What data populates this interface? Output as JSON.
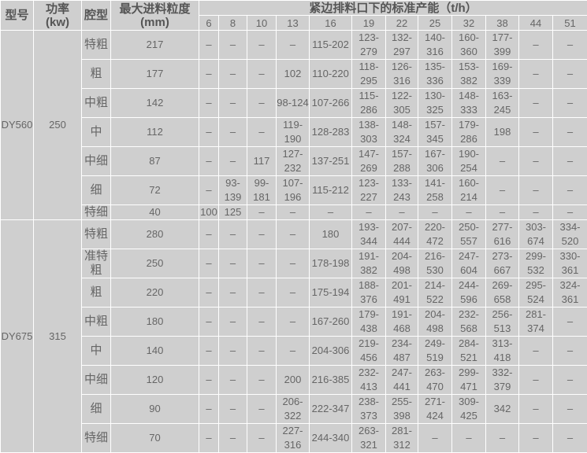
{
  "header": {
    "model": "型号",
    "power": "功率",
    "power_unit": "(kw)",
    "cavity": "腔型",
    "max_feed": "最大进料粒度",
    "max_feed_unit": "(mm)",
    "capacity_title": "紧边排料口下的标准产能（t/h）",
    "css_columns": [
      "6",
      "8",
      "10",
      "13",
      "16",
      "19",
      "22",
      "25",
      "32",
      "38",
      "44",
      "51"
    ]
  },
  "groups": [
    {
      "model": "DY560",
      "power": "250",
      "rows": [
        {
          "cavity": "特粗",
          "max_feed": "217",
          "values": [
            "–",
            "–",
            "–",
            "–",
            "115-202",
            "123-279",
            "132-297",
            "140-316",
            "160-360",
            "177-399",
            "–",
            "–"
          ]
        },
        {
          "cavity": "粗",
          "max_feed": "177",
          "values": [
            "–",
            "–",
            "–",
            "102",
            "110-220",
            "118-295",
            "126-316",
            "135-336",
            "153-382",
            "169-339",
            "–",
            "–"
          ]
        },
        {
          "cavity": "中粗",
          "max_feed": "142",
          "values": [
            "–",
            "–",
            "–",
            "98-124",
            "107-266",
            "115-286",
            "122-305",
            "130-325",
            "148-333",
            "163-245",
            "–",
            "–"
          ]
        },
        {
          "cavity": "中",
          "max_feed": "112",
          "values": [
            "–",
            "–",
            "–",
            "119-190",
            "128-283",
            "138-303",
            "148-324",
            "157-345",
            "179-286",
            "198",
            "–",
            "–"
          ]
        },
        {
          "cavity": "中细",
          "max_feed": "87",
          "values": [
            "–",
            "–",
            "117",
            "127-232",
            "137-251",
            "147-269",
            "157-288",
            "167-306",
            "190-254",
            "–",
            "–",
            "–"
          ]
        },
        {
          "cavity": "细",
          "max_feed": "72",
          "values": [
            "–",
            "93-139",
            "99-181",
            "107-196",
            "115-212",
            "123-227",
            "133-243",
            "141-258",
            "160-214",
            "–",
            "–",
            "–"
          ]
        },
        {
          "cavity": "特细",
          "max_feed": "40",
          "short": true,
          "values": [
            "100",
            "125",
            "–",
            "–",
            "–",
            "–",
            "–",
            "–",
            "–",
            "–",
            "–",
            "–"
          ]
        }
      ]
    },
    {
      "model": "DY675",
      "power": "315",
      "rows": [
        {
          "cavity": "特粗",
          "max_feed": "280",
          "values": [
            "–",
            "–",
            "–",
            "–",
            "180",
            "193-344",
            "207-444",
            "220-472",
            "250-557",
            "277-616",
            "303-674",
            "334-520"
          ]
        },
        {
          "cavity": "准特粗",
          "max_feed": "250",
          "values": [
            "–",
            "–",
            "–",
            "–",
            "178-198",
            "191-382",
            "204-498",
            "216-530",
            "247-604",
            "273-667",
            "299-532",
            "330-361"
          ]
        },
        {
          "cavity": "粗",
          "max_feed": "220",
          "values": [
            "–",
            "–",
            "–",
            "–",
            "175-194",
            "188-376",
            "201-491",
            "214-522",
            "244-596",
            "269-658",
            "295-524",
            "324-361"
          ]
        },
        {
          "cavity": "中粗",
          "max_feed": "180",
          "values": [
            "–",
            "–",
            "–",
            "–",
            "167-260",
            "179-438",
            "191-468",
            "204-498",
            "232-568",
            "256-513",
            "281-374",
            "–"
          ]
        },
        {
          "cavity": "中",
          "max_feed": "140",
          "values": [
            "–",
            "–",
            "–",
            "–",
            "204-306",
            "219-456",
            "234-487",
            "249-519",
            "284-521",
            "313-418",
            "–",
            "–"
          ]
        },
        {
          "cavity": "中细",
          "max_feed": "120",
          "values": [
            "–",
            "–",
            "–",
            "200",
            "216-385",
            "232-413",
            "247-441",
            "263-470",
            "299-471",
            "332-379",
            "–",
            "–"
          ]
        },
        {
          "cavity": "细",
          "max_feed": "90",
          "values": [
            "–",
            "–",
            "–",
            "206-322",
            "222-347",
            "238-373",
            "255-398",
            "271-424",
            "309-425",
            "342",
            "–",
            "–"
          ]
        },
        {
          "cavity": "特细",
          "max_feed": "70",
          "values": [
            "–",
            "–",
            "–",
            "227-316",
            "244-340",
            "263-321",
            "281-312",
            "–",
            "–",
            "–",
            "–",
            "–"
          ]
        }
      ]
    }
  ]
}
